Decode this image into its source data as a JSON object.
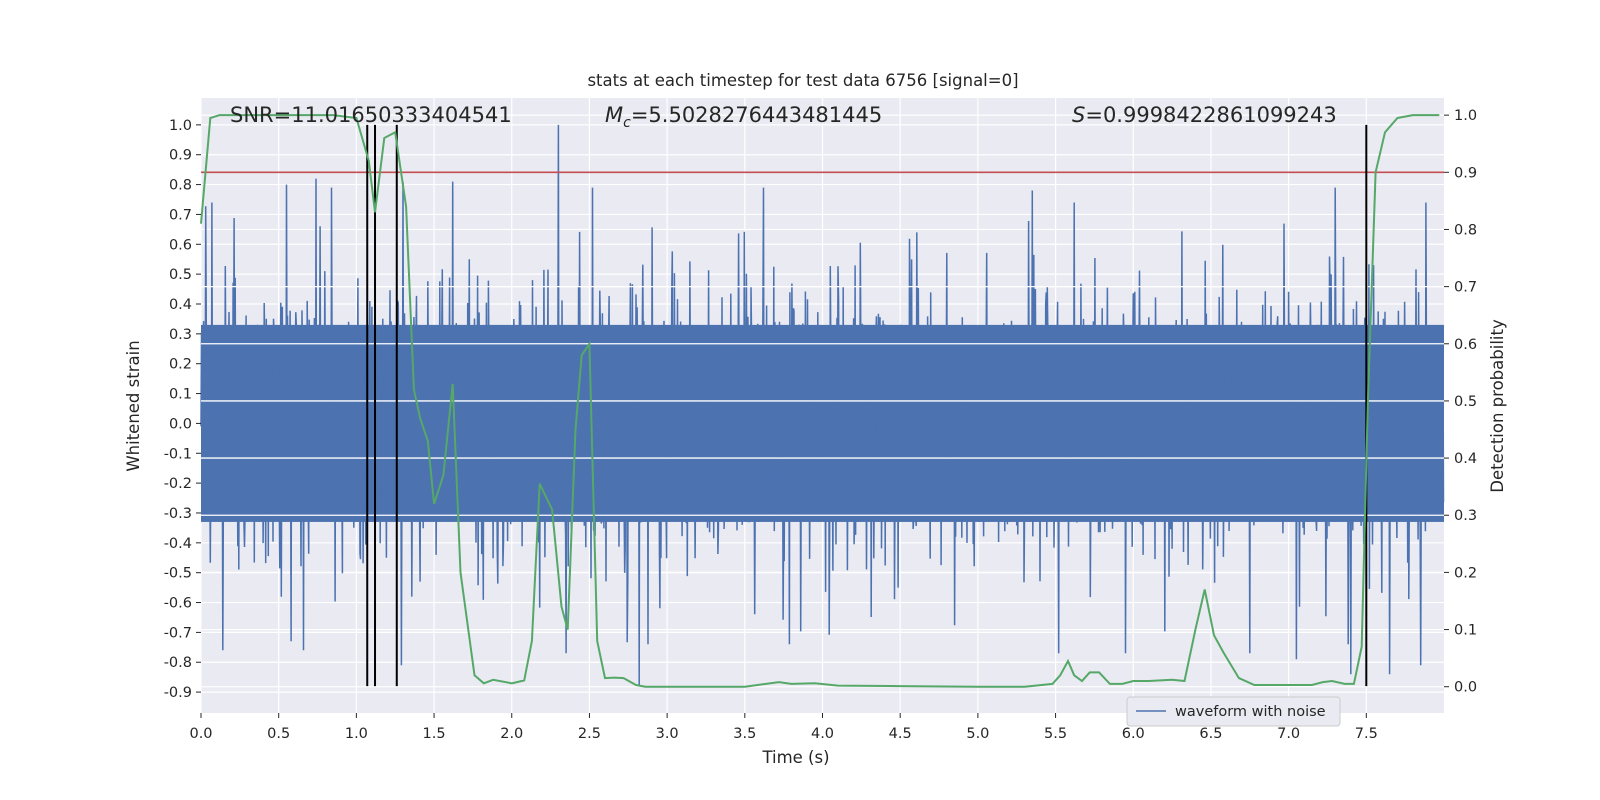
{
  "chart_data": {
    "type": "line",
    "title": "stats at each timestep for test data 6756 [signal=0]",
    "xlabel": "Time (s)",
    "ylabel": "Whitened strain",
    "y2label": "Detection probability",
    "xlim": [
      0.0,
      8.0
    ],
    "ylim": [
      -0.97,
      1.09
    ],
    "y2lim": [
      -0.046,
      1.03
    ],
    "xticks": [
      "0.0",
      "0.5",
      "1.0",
      "1.5",
      "2.0",
      "2.5",
      "3.0",
      "3.5",
      "4.0",
      "4.5",
      "5.0",
      "5.5",
      "6.0",
      "6.5",
      "7.0",
      "7.5"
    ],
    "yticks": [
      "1.0",
      "0.9",
      "0.8",
      "0.7",
      "0.6",
      "0.5",
      "0.4",
      "0.3",
      "0.2",
      "0.1",
      "0.0",
      "-0.1",
      "-0.2",
      "-0.3",
      "-0.4",
      "-0.5",
      "-0.6",
      "-0.7",
      "-0.8",
      "-0.9"
    ],
    "y2ticks": [
      "1.0",
      "0.9",
      "0.8",
      "0.7",
      "0.6",
      "0.5",
      "0.4",
      "0.3",
      "0.2",
      "0.1",
      "0.0"
    ],
    "grid": true,
    "legend": {
      "position": "lower-right",
      "entries": [
        "waveform with noise"
      ]
    },
    "annotations": {
      "snr": "SNR=11.01650333404541",
      "mc_symbol": "M",
      "mc_sub": "c",
      "mc_value": "=5.5028276443481445",
      "s_symbol": "S",
      "s_value": "=0.9998422861099243"
    },
    "threshold": {
      "axis": "y2",
      "value": 0.9
    },
    "vertical_lines": [
      1.07,
      1.12,
      1.26,
      7.5
    ],
    "vertical_line_range": [
      -0.88,
      1.0
    ],
    "waveform": {
      "name": "waveform with noise",
      "typical_amplitude": 0.45,
      "spikes": [
        {
          "t": 0.55,
          "v": 0.8
        },
        {
          "t": 0.74,
          "v": 0.82
        },
        {
          "t": 0.84,
          "v": 0.79
        },
        {
          "t": 1.3,
          "v": 0.81
        },
        {
          "t": 1.62,
          "v": 0.81
        },
        {
          "t": 2.3,
          "v": 1.0
        },
        {
          "t": 2.52,
          "v": 0.79
        },
        {
          "t": 3.62,
          "v": 0.79
        },
        {
          "t": 5.35,
          "v": 0.78
        },
        {
          "t": 5.62,
          "v": 0.74
        },
        {
          "t": 7.3,
          "v": 0.79
        },
        {
          "t": 0.14,
          "v": -0.76
        },
        {
          "t": 0.58,
          "v": -0.73
        },
        {
          "t": 0.66,
          "v": -0.76
        },
        {
          "t": 1.29,
          "v": -0.81
        },
        {
          "t": 2.35,
          "v": -0.77
        },
        {
          "t": 2.82,
          "v": -0.88
        },
        {
          "t": 5.52,
          "v": -0.77
        },
        {
          "t": 5.95,
          "v": -0.77
        },
        {
          "t": 6.75,
          "v": -0.77
        },
        {
          "t": 7.05,
          "v": -0.79
        },
        {
          "t": 7.4,
          "v": -0.84
        },
        {
          "t": 7.65,
          "v": -0.84
        },
        {
          "t": 7.85,
          "v": -0.81
        }
      ]
    },
    "detection_probability": {
      "x": [
        0.0,
        0.06,
        0.12,
        0.25,
        0.5,
        0.85,
        1.0,
        1.08,
        1.12,
        1.18,
        1.25,
        1.32,
        1.37,
        1.41,
        1.46,
        1.5,
        1.56,
        1.62,
        1.67,
        1.76,
        1.82,
        1.88,
        2.0,
        2.08,
        2.13,
        2.18,
        2.26,
        2.32,
        2.36,
        2.41,
        2.45,
        2.5,
        2.55,
        2.6,
        2.66,
        2.72,
        2.8,
        2.86,
        3.0,
        3.5,
        3.72,
        3.8,
        3.95,
        4.1,
        4.5,
        5.0,
        5.3,
        5.48,
        5.53,
        5.58,
        5.62,
        5.67,
        5.72,
        5.78,
        5.85,
        5.93,
        6.0,
        6.1,
        6.25,
        6.33,
        6.4,
        6.46,
        6.52,
        6.58,
        6.68,
        6.78,
        7.0,
        7.15,
        7.22,
        7.28,
        7.36,
        7.42,
        7.47,
        7.51,
        7.56,
        7.62,
        7.7,
        7.8,
        7.97
      ],
      "values": [
        0.81,
        0.995,
        1.0,
        1.0,
        1.0,
        1.0,
        0.995,
        0.92,
        0.83,
        0.96,
        0.97,
        0.84,
        0.52,
        0.47,
        0.43,
        0.32,
        0.37,
        0.53,
        0.2,
        0.02,
        0.006,
        0.012,
        0.006,
        0.011,
        0.08,
        0.355,
        0.31,
        0.14,
        0.1,
        0.45,
        0.58,
        0.6,
        0.08,
        0.015,
        0.016,
        0.015,
        0.003,
        0.0,
        0.0,
        0.0,
        0.008,
        0.005,
        0.006,
        0.002,
        0.001,
        0.0,
        0.0,
        0.005,
        0.02,
        0.045,
        0.02,
        0.01,
        0.025,
        0.025,
        0.005,
        0.005,
        0.01,
        0.01,
        0.012,
        0.01,
        0.1,
        0.17,
        0.09,
        0.06,
        0.015,
        0.003,
        0.003,
        0.003,
        0.008,
        0.01,
        0.005,
        0.005,
        0.07,
        0.5,
        0.9,
        0.97,
        0.995,
        1.0,
        1.0
      ]
    },
    "colors": {
      "waveform": "#4c72b0",
      "probability": "#55a868",
      "threshold": "#c44e52",
      "vlines": "#000000",
      "axes_bg": "#eaeaf2",
      "grid": "#ffffff"
    }
  }
}
